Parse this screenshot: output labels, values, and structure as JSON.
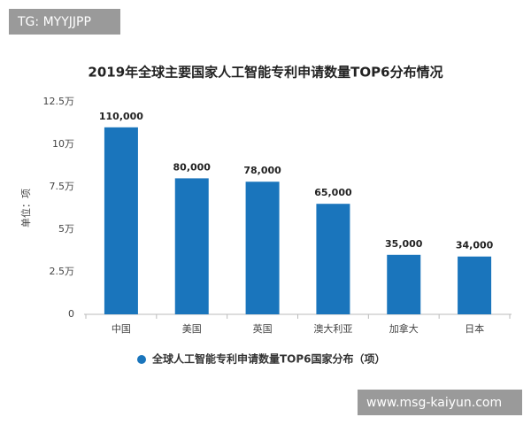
{
  "chart_data": {
    "type": "bar",
    "title": "2019年全球主要国家人工智能专利申请数量TOP6分布情况",
    "y_label": "单位：项",
    "categories": [
      "中国",
      "美国",
      "英国",
      "澳大利亚",
      "加拿大",
      "日本"
    ],
    "series": [
      {
        "name": "全球人工智能专利申请数量TOP6国家分布（项）",
        "color": "#1a75bc",
        "values": [
          110000,
          80000,
          78000,
          65000,
          35000,
          34000
        ],
        "value_labels": [
          "110,000",
          "80,000",
          "78,000",
          "65,000",
          "35,000",
          "34,000"
        ]
      }
    ],
    "ylim": [
      0,
      125000
    ],
    "yticks": [
      0,
      {
        "value": 25000,
        "label": "2.5万"
      },
      {
        "value": 50000,
        "label": "5万"
      },
      {
        "value": 75000,
        "label": "7.5万"
      },
      {
        "value": 100000,
        "label": "10万"
      },
      {
        "value": 125000,
        "label": "12.5万"
      }
    ],
    "grid": false,
    "legend": "bottom"
  },
  "watermarks": {
    "top_left": "TG: MYYJJPP",
    "bottom_right": "www.msg-kaiyun.com"
  }
}
